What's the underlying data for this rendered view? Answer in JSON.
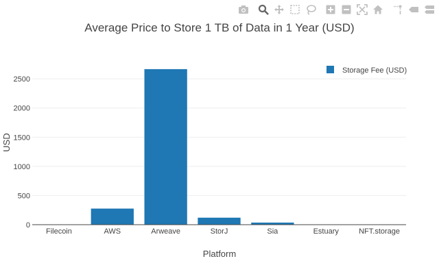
{
  "modebar": {
    "buttons": [
      {
        "name": "camera-icon",
        "group": 1
      },
      {
        "name": "zoom-icon",
        "group": 2,
        "active": true
      },
      {
        "name": "pan-icon",
        "group": 2
      },
      {
        "name": "box-select-icon",
        "group": 2
      },
      {
        "name": "lasso-select-icon",
        "group": 2
      },
      {
        "name": "zoom-in-icon",
        "group": 3
      },
      {
        "name": "zoom-out-icon",
        "group": 3
      },
      {
        "name": "autoscale-icon",
        "group": 3
      },
      {
        "name": "reset-axes-icon",
        "group": 3
      },
      {
        "name": "spike-lines-icon",
        "group": 4
      },
      {
        "name": "hover-closest-icon",
        "group": 4
      },
      {
        "name": "hover-compare-icon",
        "group": 4
      }
    ],
    "icon_color": "#c0c0c0",
    "active_color": "#666666"
  },
  "chart_data": {
    "type": "bar",
    "title": "Average Price to Store 1 TB of Data in 1 Year (USD)",
    "xlabel": "Platform",
    "ylabel": "USD",
    "categories": [
      "Filecoin",
      "AWS",
      "Arweave",
      "StorJ",
      "Sia",
      "Estuary",
      "NFT.storage"
    ],
    "series": [
      {
        "name": "Storage Fee (USD)",
        "values": [
          0.19,
          276,
          2667,
          120,
          36,
          0,
          0
        ],
        "color": "#1f77b4"
      }
    ],
    "ylim": [
      0,
      2807
    ],
    "yticks": [
      0,
      500,
      1000,
      1500,
      2000,
      2500
    ],
    "grid": true,
    "legend": "top-right"
  }
}
